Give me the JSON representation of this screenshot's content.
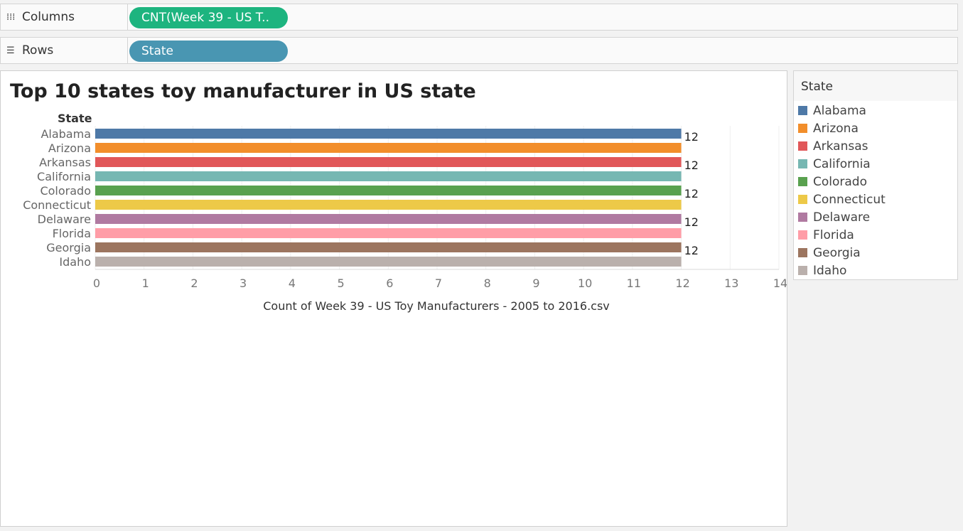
{
  "shelves": {
    "columns": {
      "label": "Columns",
      "icon": "columns-icon",
      "pill": "CNT(Week 39 - US T..",
      "pill_color": "#1db47f"
    },
    "rows": {
      "label": "Rows",
      "icon": "rows-icon",
      "pill": "State",
      "pill_color": "#4996b2"
    }
  },
  "sheet": {
    "title": "Top 10 states toy manufacturer in US state",
    "row_header": "State"
  },
  "legend": {
    "title": "State",
    "items": [
      {
        "label": "Alabama",
        "color": "#4e79a7"
      },
      {
        "label": "Arizona",
        "color": "#f28e2b"
      },
      {
        "label": "Arkansas",
        "color": "#e15759"
      },
      {
        "label": "California",
        "color": "#76b7b2"
      },
      {
        "label": "Colorado",
        "color": "#59a14f"
      },
      {
        "label": "Connecticut",
        "color": "#edc948"
      },
      {
        "label": "Delaware",
        "color": "#b07aa1"
      },
      {
        "label": "Florida",
        "color": "#ff9da7"
      },
      {
        "label": "Georgia",
        "color": "#9c755f"
      },
      {
        "label": "Idaho",
        "color": "#bab0ac"
      }
    ]
  },
  "chart_data": {
    "type": "bar",
    "orientation": "horizontal",
    "title": "Top 10 states toy manufacturer in US state",
    "ylabel": "State",
    "xlabel": "Count of Week 39 - US Toy Manufacturers - 2005 to 2016.csv",
    "categories": [
      "Alabama",
      "Arizona",
      "Arkansas",
      "California",
      "Colorado",
      "Connecticut",
      "Delaware",
      "Florida",
      "Georgia",
      "Idaho"
    ],
    "values": [
      12,
      12,
      12,
      12,
      12,
      12,
      12,
      12,
      12,
      12
    ],
    "data_labels": [
      "12",
      "",
      "12",
      "",
      "12",
      "",
      "12",
      "",
      "12",
      ""
    ],
    "colors": [
      "#4e79a7",
      "#f28e2b",
      "#e15759",
      "#76b7b2",
      "#59a14f",
      "#edc948",
      "#b07aa1",
      "#ff9da7",
      "#9c755f",
      "#bab0ac"
    ],
    "xlim": [
      0,
      14
    ],
    "xticks": [
      "0",
      "1",
      "2",
      "3",
      "4",
      "5",
      "6",
      "7",
      "8",
      "9",
      "10",
      "11",
      "12",
      "13",
      "14"
    ],
    "grid": true
  }
}
